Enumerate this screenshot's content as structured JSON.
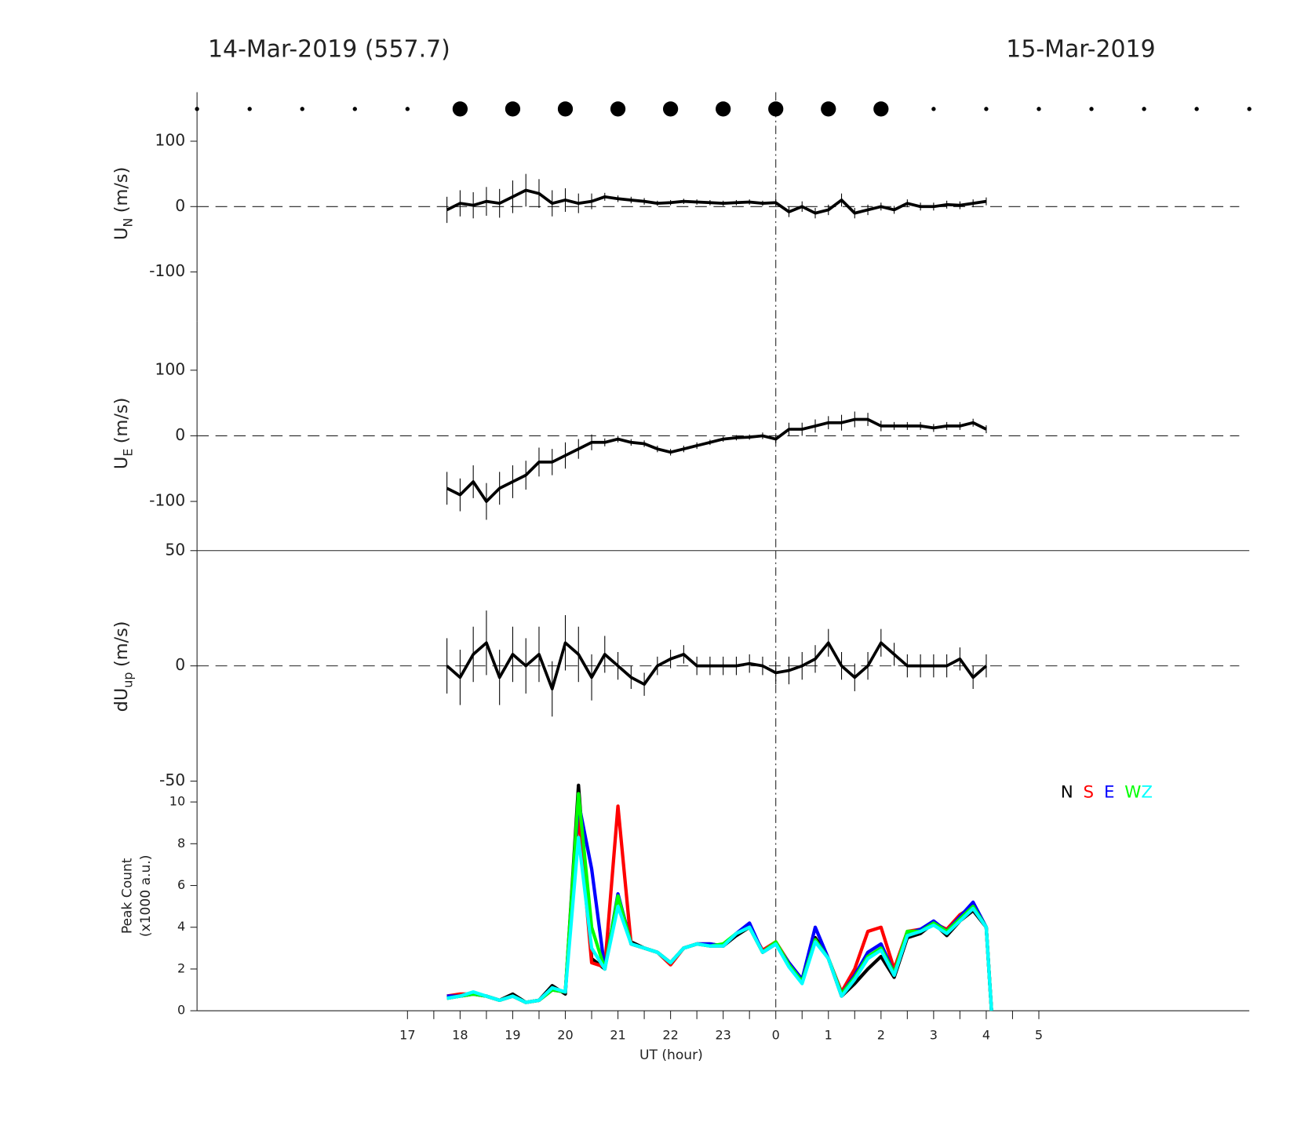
{
  "header": {
    "left": "14-Mar-2019 (557.7)",
    "right": "15-Mar-2019"
  },
  "chart_data": [
    {
      "type": "errorbar",
      "ylabel": "U",
      "ylabel_sub": "N",
      "ylabel_unit": "(m/s)",
      "xlim": [
        13,
        33
      ],
      "ylim": [
        -175,
        175
      ],
      "yticks": [
        -100,
        0,
        100
      ],
      "reference_y": 0,
      "reference_x": 24,
      "color": "#000000",
      "markers": {
        "x": [
          13,
          14,
          15,
          16,
          17,
          18,
          19,
          20,
          21,
          22,
          23,
          24,
          25,
          26,
          27,
          28,
          29,
          30,
          31,
          32,
          33
        ],
        "sizes": [
          2.5,
          2.5,
          2.5,
          2.5,
          2.5,
          9,
          9,
          9,
          9,
          9,
          9,
          9,
          9,
          9,
          2.5,
          2.5,
          2.5,
          2.5,
          2.5,
          2.5,
          2.5
        ]
      },
      "x": [
        17.75,
        18,
        18.25,
        18.5,
        18.75,
        19,
        19.25,
        19.5,
        19.75,
        20,
        20.25,
        20.5,
        20.75,
        21,
        21.25,
        21.5,
        21.75,
        22,
        22.25,
        22.5,
        22.75,
        23,
        23.25,
        23.5,
        23.75,
        24,
        24.25,
        24.5,
        24.75,
        25,
        25.25,
        25.5,
        25.75,
        26,
        26.25,
        26.5,
        26.75,
        27,
        27.25,
        27.5,
        27.75,
        28
      ],
      "values": [
        -5,
        5,
        2,
        8,
        5,
        15,
        25,
        20,
        5,
        10,
        5,
        8,
        15,
        12,
        10,
        8,
        5,
        6,
        8,
        7,
        6,
        5,
        6,
        7,
        5,
        6,
        -8,
        0,
        -10,
        -5,
        10,
        -10,
        -5,
        0,
        -5,
        5,
        0,
        0,
        3,
        2,
        5,
        8
      ],
      "errors": [
        20,
        20,
        20,
        22,
        22,
        25,
        25,
        22,
        20,
        18,
        15,
        12,
        6,
        5,
        5,
        5,
        4,
        4,
        4,
        4,
        4,
        4,
        4,
        4,
        4,
        5,
        8,
        8,
        8,
        8,
        10,
        8,
        8,
        6,
        6,
        6,
        6,
        6,
        6,
        6,
        6,
        6
      ]
    },
    {
      "type": "errorbar",
      "ylabel": "U",
      "ylabel_sub": "E",
      "ylabel_unit": "(m/s)",
      "xlim": [
        13,
        33
      ],
      "ylim": [
        -175,
        175
      ],
      "yticks": [
        -100,
        0,
        100
      ],
      "reference_y": 0,
      "reference_x": 24,
      "color": "#000000",
      "x": [
        17.75,
        18,
        18.25,
        18.5,
        18.75,
        19,
        19.25,
        19.5,
        19.75,
        20,
        20.25,
        20.5,
        20.75,
        21,
        21.25,
        21.5,
        21.75,
        22,
        22.25,
        22.5,
        22.75,
        23,
        23.25,
        23.5,
        23.75,
        24,
        24.25,
        24.5,
        24.75,
        25,
        25.25,
        25.5,
        25.75,
        26,
        26.25,
        26.5,
        26.75,
        27,
        27.25,
        27.5,
        27.75,
        28
      ],
      "values": [
        -80,
        -90,
        -70,
        -100,
        -80,
        -70,
        -60,
        -40,
        -40,
        -30,
        -20,
        -10,
        -10,
        -5,
        -10,
        -12,
        -20,
        -25,
        -20,
        -15,
        -10,
        -5,
        -3,
        -2,
        0,
        -5,
        10,
        10,
        15,
        20,
        20,
        25,
        25,
        15,
        15,
        15,
        15,
        12,
        15,
        15,
        20,
        10
      ],
      "errors": [
        25,
        25,
        25,
        28,
        25,
        25,
        22,
        22,
        20,
        20,
        15,
        12,
        6,
        5,
        5,
        5,
        5,
        5,
        5,
        5,
        4,
        4,
        4,
        4,
        5,
        6,
        10,
        10,
        10,
        10,
        12,
        12,
        10,
        8,
        6,
        6,
        6,
        6,
        6,
        6,
        6,
        6
      ]
    },
    {
      "type": "errorbar",
      "ylabel": "dU",
      "ylabel_sub": "up",
      "ylabel_unit": "(m/s)",
      "xlim": [
        13,
        33
      ],
      "ylim": [
        -50,
        50
      ],
      "yticks": [
        -50,
        0,
        50
      ],
      "reference_y": 0,
      "reference_x": 24,
      "color": "#000000",
      "x": [
        17.75,
        18,
        18.25,
        18.5,
        18.75,
        19,
        19.25,
        19.5,
        19.75,
        20,
        20.25,
        20.5,
        20.75,
        21,
        21.25,
        21.5,
        21.75,
        22,
        22.25,
        22.5,
        22.75,
        23,
        23.25,
        23.5,
        23.75,
        24,
        24.25,
        24.5,
        24.75,
        25,
        25.25,
        25.5,
        25.75,
        26,
        26.25,
        26.5,
        26.75,
        27,
        27.25,
        27.5,
        27.75,
        28
      ],
      "values": [
        0,
        -5,
        5,
        10,
        -5,
        5,
        0,
        5,
        -10,
        10,
        5,
        -5,
        5,
        0,
        -5,
        -8,
        0,
        3,
        5,
        0,
        0,
        0,
        0,
        1,
        0,
        -3,
        -2,
        0,
        3,
        10,
        0,
        -5,
        0,
        10,
        5,
        0,
        0,
        0,
        0,
        3,
        -5,
        0
      ],
      "errors": [
        12,
        12,
        12,
        14,
        12,
        12,
        12,
        12,
        12,
        12,
        12,
        10,
        8,
        6,
        5,
        5,
        4,
        4,
        4,
        4,
        4,
        4,
        4,
        4,
        4,
        5,
        6,
        6,
        6,
        6,
        6,
        6,
        6,
        6,
        5,
        5,
        5,
        5,
        5,
        5,
        5,
        5
      ]
    },
    {
      "type": "line",
      "ylabel": [
        "Peak Count",
        "(x1000 a.u.)"
      ],
      "xlabel": "UT (hour)",
      "xlim": [
        13,
        33
      ],
      "ylim": [
        0,
        11
      ],
      "yticks": [
        0,
        2,
        4,
        6,
        8,
        10
      ],
      "reference_x": 24,
      "xticks": [
        17,
        18,
        19,
        20,
        21,
        22,
        23,
        {
          "value": 24,
          "label": "0"
        },
        {
          "value": 25,
          "label": "1"
        },
        {
          "value": 26,
          "label": "2"
        },
        {
          "value": 27,
          "label": "3"
        },
        {
          "value": 28,
          "label": "4"
        },
        {
          "value": 29,
          "label": "5"
        }
      ],
      "xminorticks": [
        17.5,
        18.5,
        19.5,
        20.5,
        21.5,
        22.5,
        23.5,
        24.5,
        25.5,
        26.5,
        27.5,
        28.5
      ],
      "legend": "upper right",
      "x": [
        17.75,
        18,
        18.25,
        18.5,
        18.75,
        19,
        19.25,
        19.5,
        19.75,
        20,
        20.25,
        20.5,
        20.75,
        21,
        21.25,
        21.5,
        21.75,
        22,
        22.25,
        22.5,
        22.75,
        23,
        23.25,
        23.5,
        23.75,
        24,
        24.25,
        24.5,
        24.75,
        25,
        25.25,
        25.5,
        25.75,
        26,
        26.25,
        26.5,
        26.75,
        27,
        27.25,
        27.5,
        27.75,
        28,
        28.1
      ],
      "series": [
        {
          "name": "N",
          "color": "#000000",
          "values": [
            0.6,
            0.7,
            0.8,
            0.7,
            0.5,
            0.8,
            0.4,
            0.5,
            1.2,
            0.8,
            10.8,
            2.5,
            2.0,
            5.5,
            3.3,
            3.0,
            2.8,
            2.3,
            3.0,
            3.2,
            3.2,
            3.1,
            3.6,
            4.0,
            2.8,
            3.2,
            2.2,
            1.4,
            3.5,
            2.5,
            0.7,
            1.3,
            2.0,
            2.6,
            1.6,
            3.5,
            3.7,
            4.2,
            3.6,
            4.3,
            4.8,
            4.0,
            0
          ]
        },
        {
          "name": "S",
          "color": "#ff0000",
          "values": [
            0.7,
            0.8,
            0.8,
            0.7,
            0.5,
            0.7,
            0.4,
            0.5,
            1.0,
            0.9,
            9.5,
            2.3,
            2.1,
            9.8,
            3.2,
            3.0,
            2.8,
            2.2,
            3.0,
            3.2,
            3.1,
            3.1,
            3.7,
            4.0,
            2.9,
            3.3,
            2.3,
            1.5,
            3.4,
            2.5,
            0.9,
            2.0,
            3.8,
            4.0,
            2.0,
            3.8,
            3.9,
            4.2,
            3.9,
            4.6,
            5.0,
            4.0,
            0
          ]
        },
        {
          "name": "E",
          "color": "#0000ff",
          "values": [
            0.7,
            0.7,
            0.8,
            0.7,
            0.5,
            0.7,
            0.4,
            0.5,
            1.0,
            0.9,
            10.0,
            6.8,
            2.0,
            5.6,
            3.2,
            3.0,
            2.8,
            2.3,
            3.0,
            3.2,
            3.2,
            3.1,
            3.7,
            4.2,
            2.8,
            3.2,
            2.3,
            1.5,
            4.0,
            2.5,
            0.8,
            1.7,
            2.8,
            3.2,
            1.8,
            3.7,
            3.9,
            4.3,
            3.8,
            4.5,
            5.2,
            4.0,
            0
          ]
        },
        {
          "name": "W",
          "color": "#00ff00",
          "values": [
            0.6,
            0.7,
            0.8,
            0.7,
            0.5,
            0.7,
            0.4,
            0.5,
            1.0,
            0.9,
            10.4,
            4.0,
            2.0,
            5.5,
            3.2,
            3.0,
            2.8,
            2.3,
            3.0,
            3.2,
            3.1,
            3.2,
            3.7,
            4.0,
            2.8,
            3.3,
            2.2,
            1.4,
            3.4,
            2.5,
            0.8,
            1.6,
            2.6,
            3.0,
            1.8,
            3.8,
            3.8,
            4.2,
            3.8,
            4.4,
            5.0,
            4.0,
            0
          ]
        },
        {
          "name": "Z",
          "color": "#00ffff",
          "values": [
            0.6,
            0.7,
            0.9,
            0.7,
            0.5,
            0.7,
            0.4,
            0.5,
            1.1,
            0.9,
            8.3,
            3.0,
            2.0,
            5.0,
            3.2,
            3.0,
            2.8,
            2.3,
            3.0,
            3.2,
            3.1,
            3.1,
            3.7,
            4.0,
            2.8,
            3.2,
            2.1,
            1.3,
            3.3,
            2.5,
            0.7,
            1.5,
            2.5,
            2.9,
            1.7,
            3.6,
            3.8,
            4.1,
            3.7,
            4.3,
            4.9,
            4.0,
            0
          ]
        }
      ]
    }
  ]
}
